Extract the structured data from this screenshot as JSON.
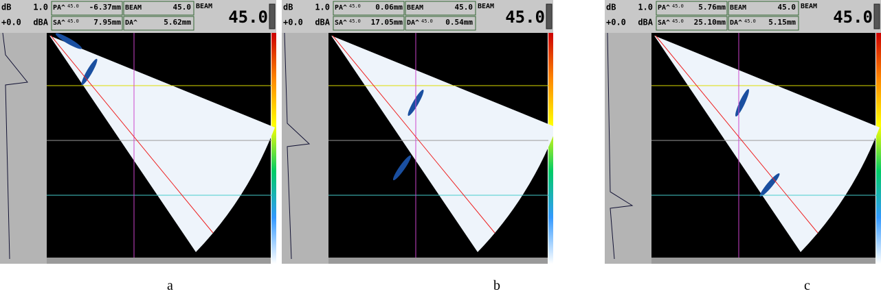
{
  "panels": [
    {
      "caption": "a",
      "header": {
        "db_label": "dB",
        "db_value": "1.0",
        "gain": "+0.0",
        "dba_label": "dBA",
        "pa_label": "PA^",
        "pa_angle": "45.0",
        "pa_value": "-6.37mm",
        "sa_label": "SA^",
        "sa_angle": "45.0",
        "sa_value": "7.95mm",
        "beam_label": "BEAM",
        "beam_value": "45.0",
        "da_label": "DA^",
        "da_value": "5.62mm",
        "beam_title": "BEAM",
        "big_angle": "45.0"
      }
    },
    {
      "caption": "b",
      "header": {
        "db_label": "dB",
        "db_value": "1.0",
        "gain": "+0.0",
        "dba_label": "dBA",
        "pa_label": "PA^",
        "pa_angle": "45.0",
        "pa_value": "0.06mm",
        "sa_label": "SA^",
        "sa_angle": "45.0",
        "sa_value": "17.05mm",
        "beam_label": "BEAM",
        "beam_value": "45.0",
        "da_label": "DA^",
        "da_angle": "45.0",
        "da_value": "0.54mm",
        "beam_title": "BEAM",
        "big_angle": "45.0"
      }
    },
    {
      "caption": "c",
      "header": {
        "db_label": "dB",
        "db_value": "1.0",
        "gain": "+0.0",
        "dba_label": "dBA",
        "pa_label": "PA^",
        "pa_angle": "45.0",
        "pa_value": "5.76mm",
        "sa_label": "SA^",
        "sa_angle": "45.0",
        "sa_value": "25.10mm",
        "beam_label": "BEAM",
        "beam_value": "45.0",
        "da_label": "DA^",
        "da_angle": "45.0",
        "da_value": "5.15mm",
        "beam_title": "BEAM",
        "big_angle": "45.0"
      }
    }
  ]
}
